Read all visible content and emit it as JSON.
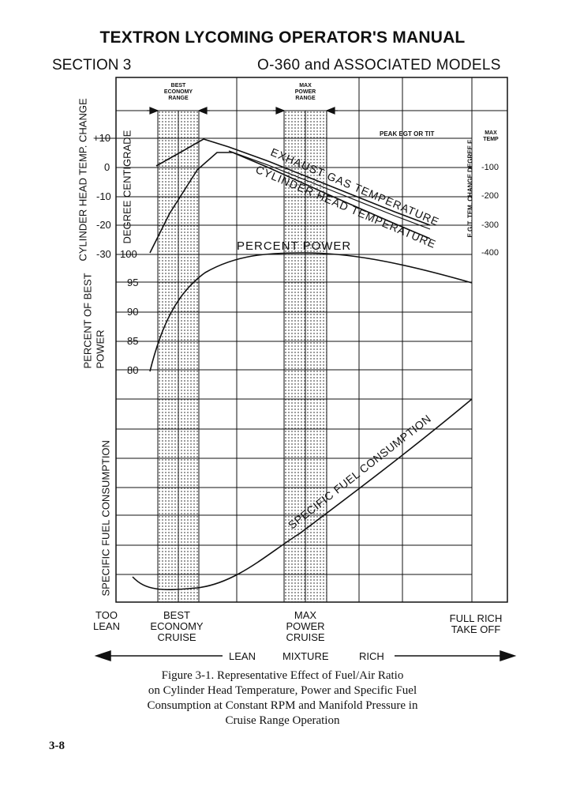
{
  "header": {
    "manual_title": "TEXTRON LYCOMING OPERATOR'S MANUAL",
    "section": "SECTION 3",
    "models": "O-360 and ASSOCIATED MODELS"
  },
  "chart": {
    "band_labels": {
      "best_economy_range": [
        "BEST",
        "ECONOMY",
        "RANGE"
      ],
      "max_power_range": [
        "MAX",
        "POWER",
        "RANGE"
      ]
    },
    "axes": {
      "cht_label": "CYLINDER HEAD TEMP. CHANGE",
      "degree_label": "DEGREE CENTIGRADE",
      "power_label_line1": "PERCENT OF BEST",
      "power_label_line2": "POWER",
      "sfc_label": "SPECIFIC FUEL CONSUMPTION",
      "egt_label": "E.G.T. TEM. CHANGE DEGREE F",
      "max_temp": [
        "MAX",
        "TEMP"
      ],
      "peak_label": "PEAK EGT OR TIT",
      "cht_ticks": [
        "+10",
        "0",
        "-10",
        "-20",
        "-30"
      ],
      "power_ticks": [
        "100",
        "95",
        "90",
        "85",
        "80"
      ],
      "egt_ticks": [
        "-100",
        "-200",
        "-300",
        "-400"
      ]
    },
    "curve_labels": {
      "egt": "EXHAUST GAS TEMPERATURE",
      "cht": "CYLINDER HEAD TEMPERATURE",
      "power": "PERCENT POWER",
      "sfc": "SPECIFIC FUEL CONSUMPTION"
    },
    "bottom_labels": {
      "too_lean": [
        "TOO",
        "LEAN"
      ],
      "best_economy": [
        "BEST",
        "ECONOMY",
        "CRUISE"
      ],
      "max_power": [
        "MAX",
        "POWER",
        "CRUISE"
      ],
      "full_rich": [
        "FULL RICH",
        "TAKE OFF"
      ]
    },
    "mixture": {
      "lean": "LEAN",
      "mixture": "MIXTURE",
      "rich": "RICH"
    }
  },
  "caption": {
    "line1": "Figure 3-1. Representative Effect of Fuel/Air Ratio",
    "line2": "on Cylinder Head Temperature, Power and Specific Fuel",
    "line3": "Consumption at Constant RPM and Manifold Pressure in",
    "line4": "Cruise Range Operation"
  },
  "page_number": "3-8"
}
